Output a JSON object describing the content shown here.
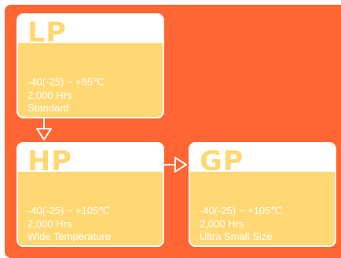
{
  "series": [
    {
      "code": "LP",
      "temperature": "-40(-25) ~ +85℃",
      "life": "2,000 Hrs",
      "feature": "Standard"
    },
    {
      "code": "HP",
      "temperature": "-40(-25) ~ +105℃",
      "life": "2,000 Hrs",
      "feature": "Wide Temperature"
    },
    {
      "code": "GP",
      "temperature": "-40(-25) ~ +105℃",
      "life": "2,000 Hrs",
      "feature": "Ultra Small Size"
    }
  ],
  "colors": {
    "background": "#ff6633",
    "card": "#ffd874",
    "card_header": "#ffffff",
    "text": "#ffffff"
  }
}
